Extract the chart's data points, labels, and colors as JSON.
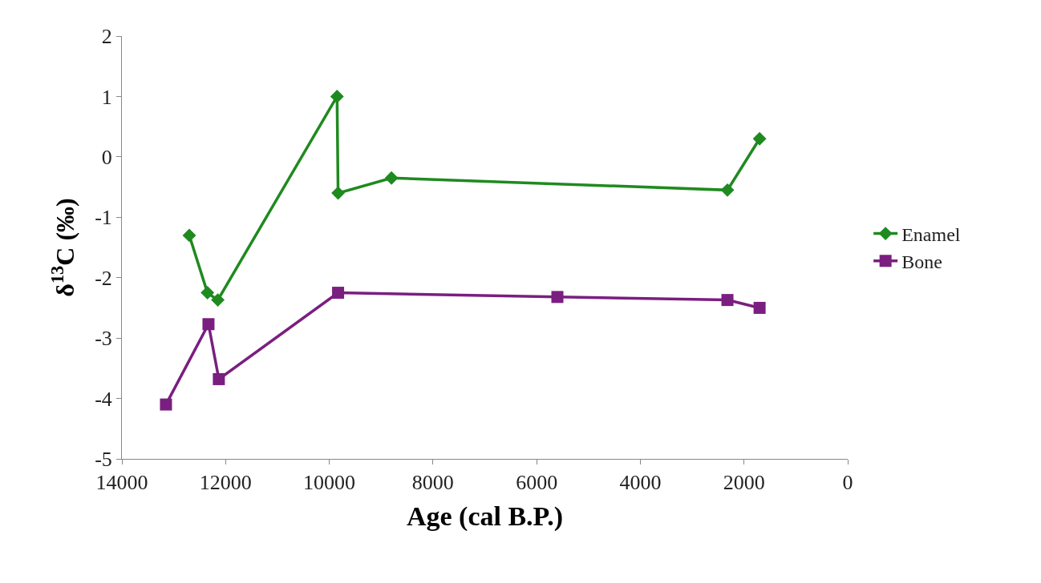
{
  "chart_data": {
    "type": "line",
    "xlabel": "Age (cal B.P.)",
    "ylabel": "δ$^{13}$C (‰)",
    "xlim": [
      14000,
      0
    ],
    "xticks": [
      14000,
      12000,
      10000,
      8000,
      6000,
      4000,
      2000,
      0
    ],
    "ylim": [
      -5,
      2
    ],
    "yticks": [
      -5,
      -4,
      -3,
      -2,
      -1,
      0,
      1,
      2
    ],
    "legend": "right",
    "series": [
      {
        "name": "Enamel",
        "color": "#1f8a1f",
        "marker": "diamond",
        "x": [
          12700,
          12350,
          12150,
          9850,
          9830,
          8800,
          2320,
          1700
        ],
        "values": [
          -1.3,
          -2.25,
          -2.37,
          1.0,
          -0.6,
          -0.35,
          -0.55,
          0.3
        ]
      },
      {
        "name": "Bone",
        "color": "#7a1e80",
        "marker": "square",
        "x": [
          13150,
          12330,
          12130,
          9830,
          5600,
          2320,
          1700
        ],
        "values": [
          -4.1,
          -2.77,
          -3.68,
          -2.25,
          -2.32,
          -2.37,
          -2.5
        ]
      }
    ]
  }
}
